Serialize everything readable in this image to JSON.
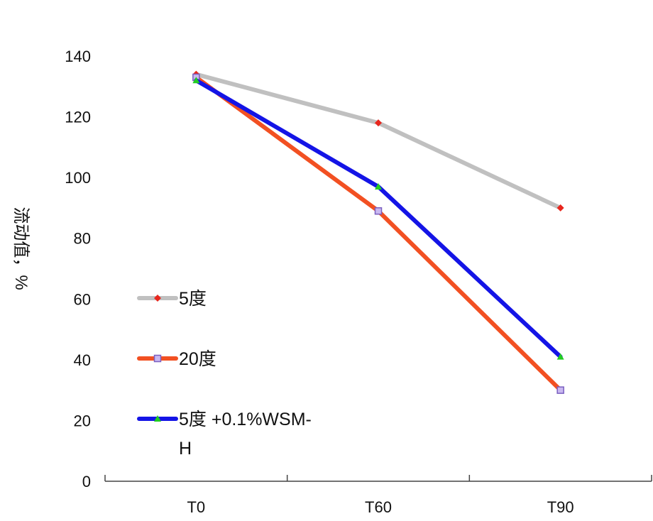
{
  "chart_data": {
    "type": "line",
    "categories": [
      "T0",
      "T60",
      "T90"
    ],
    "ylabel": "流动值，%",
    "xlabel": "",
    "ylim": [
      0,
      140
    ],
    "yticks": [
      0,
      20,
      40,
      60,
      80,
      100,
      120,
      140
    ],
    "grid": false,
    "legend_position": "left",
    "series": [
      {
        "name": "5度",
        "values": [
          134,
          118,
          90
        ],
        "color": "#c0c0c0",
        "marker": "diamond",
        "marker_color": "#e8261d"
      },
      {
        "name": "20度",
        "values": [
          133,
          89,
          30
        ],
        "color": "#f25022",
        "marker": "square",
        "marker_color": "#7a5fc0"
      },
      {
        "name": "5度 +0.1%WSM-H",
        "values": [
          132,
          97,
          41
        ],
        "color": "#1414e6",
        "marker": "triangle",
        "marker_color": "#22cc22"
      }
    ]
  }
}
